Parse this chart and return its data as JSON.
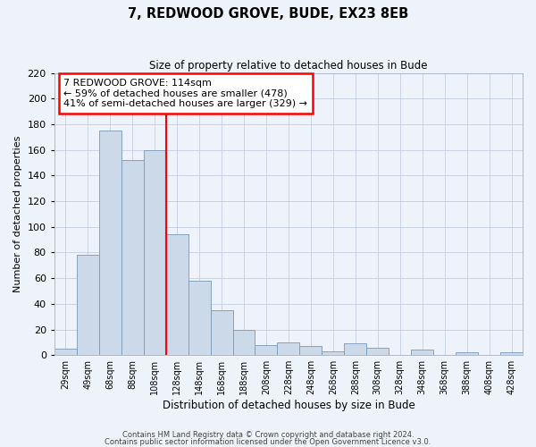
{
  "title": "7, REDWOOD GROVE, BUDE, EX23 8EB",
  "subtitle": "Size of property relative to detached houses in Bude",
  "xlabel": "Distribution of detached houses by size in Bude",
  "ylabel": "Number of detached properties",
  "bar_color": "#ccd9e8",
  "bar_edge_color": "#7799bb",
  "background_color": "#eef2fa",
  "grid_color": "#c5cfe0",
  "bin_labels": [
    "29sqm",
    "49sqm",
    "68sqm",
    "88sqm",
    "108sqm",
    "128sqm",
    "148sqm",
    "168sqm",
    "188sqm",
    "208sqm",
    "228sqm",
    "248sqm",
    "268sqm",
    "288sqm",
    "308sqm",
    "328sqm",
    "348sqm",
    "368sqm",
    "388sqm",
    "408sqm",
    "428sqm"
  ],
  "bar_heights": [
    5,
    78,
    175,
    152,
    160,
    94,
    58,
    35,
    20,
    8,
    10,
    7,
    3,
    9,
    6,
    0,
    4,
    0,
    2,
    0,
    2
  ],
  "ylim": [
    0,
    220
  ],
  "yticks": [
    0,
    20,
    40,
    60,
    80,
    100,
    120,
    140,
    160,
    180,
    200,
    220
  ],
  "red_line_x": 4.5,
  "annotation_title": "7 REDWOOD GROVE: 114sqm",
  "annotation_line1": "← 59% of detached houses are smaller (478)",
  "annotation_line2": "41% of semi-detached houses are larger (329) →",
  "footer1": "Contains HM Land Registry data © Crown copyright and database right 2024.",
  "footer2": "Contains public sector information licensed under the Open Government Licence v3.0."
}
